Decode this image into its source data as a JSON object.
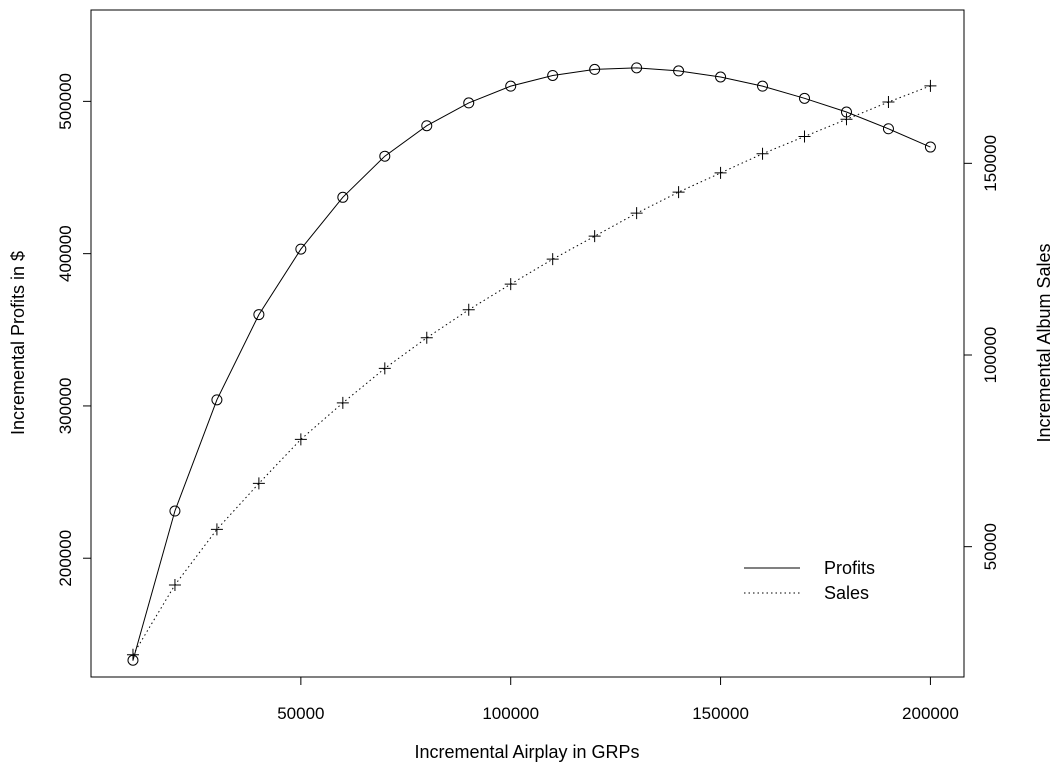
{
  "chart_data": {
    "type": "line",
    "title": "",
    "xlabel": "Incremental Airplay in GRPs",
    "ylabel_left": "Incremental Profits in $",
    "ylabel_right": "Incremental Album Sales",
    "x_ticks": [
      "50000",
      "100000",
      "150000",
      "200000"
    ],
    "y_left_ticks": [
      "200000",
      "300000",
      "400000",
      "500000"
    ],
    "y_right_ticks": [
      "50000",
      "100000",
      "150000"
    ],
    "xlim": [
      0,
      208000
    ],
    "y_left_lim": [
      122000,
      560000
    ],
    "y_right_lim": [
      16000,
      190000
    ],
    "grid": false,
    "legend_position": "bottom-right",
    "x": [
      10000,
      20000,
      30000,
      40000,
      50000,
      60000,
      70000,
      80000,
      90000,
      100000,
      110000,
      120000,
      130000,
      140000,
      150000,
      160000,
      170000,
      180000,
      190000,
      200000
    ],
    "series": [
      {
        "name": "Profits",
        "axis": "left",
        "line_style": "solid",
        "marker": "circle",
        "values": [
          133000,
          231000,
          304000,
          360000,
          403000,
          437000,
          464000,
          484000,
          499000,
          510000,
          517000,
          521000,
          522000,
          520000,
          516000,
          510000,
          502000,
          493000,
          482000,
          470000
        ]
      },
      {
        "name": "Sales",
        "axis": "right",
        "line_style": "dotted",
        "marker": "plus",
        "values": [
          21800,
          40000,
          54500,
          66500,
          78000,
          87500,
          96500,
          104500,
          111800,
          118500,
          125000,
          131000,
          137000,
          142500,
          147500,
          152500,
          157000,
          161500,
          166000,
          170200
        ]
      }
    ]
  }
}
